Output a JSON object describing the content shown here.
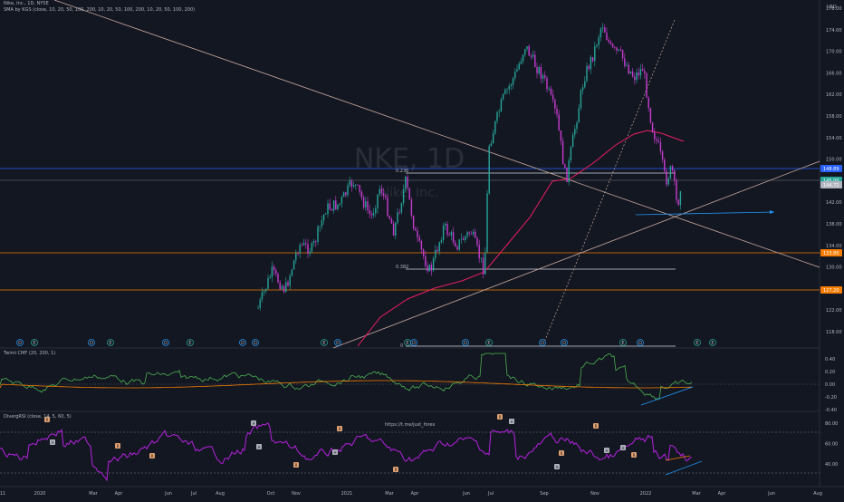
{
  "header": {
    "line1": "Nike, Inc., 1D, NYSE",
    "line2": "SMA by KGS (close, 10, 20, 50, 100, 200, 10, 20, 50, 100, 200, 10, 20, 50, 100, 200)",
    "usd": "USD"
  },
  "watermark": {
    "symbol": "NKE, 1D",
    "name": "Nike, Inc."
  },
  "price_axis": {
    "ticks": [
      "178.00",
      "174.00",
      "170.00",
      "166.00",
      "162.00",
      "158.00",
      "154.00",
      "150.00",
      "146.00",
      "142.00",
      "138.00",
      "134.00",
      "130.00",
      "126.00",
      "122.00",
      "118.00"
    ],
    "labels": [
      {
        "text": "148.89",
        "color": "#2962ff"
      },
      {
        "text": "145.00",
        "color": "#26a69a"
      },
      {
        "text": "144.72",
        "color": "#b2b5be"
      },
      {
        "text": "133.80",
        "color": "#f57c00"
      },
      {
        "text": "127.20",
        "color": "#f57c00"
      }
    ]
  },
  "fib_labels": {
    "upper": "0.236",
    "lower": "0.382",
    "zero": "0"
  },
  "indicators": {
    "cmf": {
      "title": "Twiml CMF (20, 200, 1)",
      "ticks": [
        "0.40",
        "0.20",
        "0.00",
        "-0.20",
        "-0.40"
      ]
    },
    "rsi": {
      "title": "DivergRSI (close, 14, 5, 60, 5)",
      "ticks": [
        "80.00",
        "60.00",
        "40.00"
      ],
      "link": "https://t.me/just_forex",
      "div_markers": [
        "R",
        "H",
        "R",
        "R",
        "H",
        "H",
        "R",
        "R",
        "H",
        "R",
        "R",
        "H",
        "R",
        "H",
        "R",
        "H",
        "R",
        "H"
      ]
    }
  },
  "time_axis": {
    "ticks": [
      "11",
      "2020",
      "Mar",
      "Apr",
      "Jun",
      "Jul",
      "Aug",
      "Oct",
      "Nov",
      "2021",
      "Mar",
      "Apr",
      "Jun",
      "Jul",
      "Sep",
      "Nov",
      "2022",
      "Mar",
      "Apr",
      "Jun",
      "Aug"
    ]
  },
  "event_icons": [
    "D",
    "E",
    "D",
    "E",
    "D",
    "E",
    "D",
    "D",
    "E",
    "D",
    "E",
    "D",
    "D",
    "E",
    "D",
    "D",
    "E",
    "D",
    "E",
    "E"
  ],
  "colors": {
    "bg": "#131722",
    "bull": "#26a69a",
    "bear": "#c83bd1",
    "sma": "#e91e63",
    "blue": "#2962ff",
    "orange": "#f57c00",
    "trend": "#c9aaa0",
    "cmf": "#4caf50",
    "rsi": "#b620e0"
  }
}
